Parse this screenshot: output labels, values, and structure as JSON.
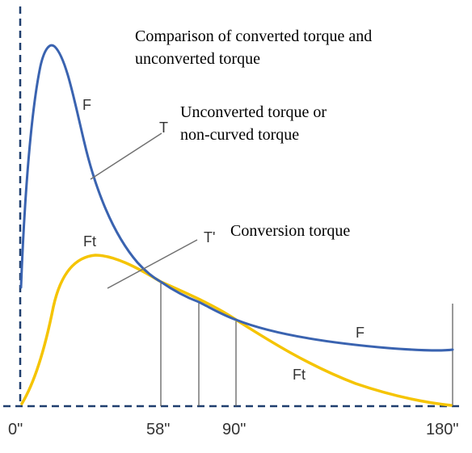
{
  "title": "Comparison of converted torque and unconverted torque",
  "title_lines": [
    "Comparison of converted torque and",
    "unconverted torque"
  ],
  "annotations": {
    "T": {
      "symbol": "T",
      "lines": [
        "Unconverted torque or",
        "non-curved torque"
      ]
    },
    "T_prime": {
      "symbol": "T'",
      "lines": [
        "Conversion torque"
      ]
    }
  },
  "curves": {
    "F": {
      "label": "F",
      "color": "#3a63b0"
    },
    "Ft": {
      "label": "Ft",
      "color": "#f5c400"
    }
  },
  "x_ticks": [
    "0\"",
    "58\"",
    "90\"",
    "180\""
  ],
  "colors": {
    "axis": "#1f3e6e",
    "leader": "#707070",
    "marker": "#555555"
  }
}
